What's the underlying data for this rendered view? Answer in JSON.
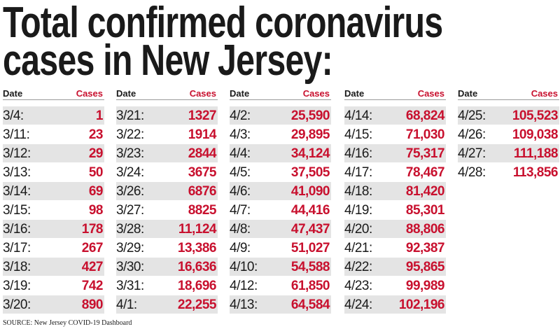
{
  "header": {
    "title_lines": [
      "Total confirmed coronavirus",
      "cases in New Jersey:"
    ]
  },
  "columns": [
    {
      "date_header": "Date",
      "cases_header": "Cases",
      "rows": [
        [
          "3/4:",
          "1"
        ],
        [
          "3/11:",
          "23"
        ],
        [
          "3/12:",
          "29"
        ],
        [
          "3/13:",
          "50"
        ],
        [
          "3/14:",
          "69"
        ],
        [
          "3/15:",
          "98"
        ],
        [
          "3/16:",
          "178"
        ],
        [
          "3/17:",
          "267"
        ],
        [
          "3/18:",
          "427"
        ],
        [
          "3/19:",
          "742"
        ],
        [
          "3/20:",
          "890"
        ]
      ]
    },
    {
      "date_header": "Date",
      "cases_header": "Cases",
      "rows": [
        [
          "3/21:",
          "1327"
        ],
        [
          "3/22:",
          "1914"
        ],
        [
          "3/23:",
          "2844"
        ],
        [
          "3/24:",
          "3675"
        ],
        [
          "3/26:",
          "6876"
        ],
        [
          "3/27:",
          "8825"
        ],
        [
          "3/28:",
          "11,124"
        ],
        [
          "3/29:",
          "13,386"
        ],
        [
          "3/30:",
          "16,636"
        ],
        [
          "3/31:",
          "18,696"
        ],
        [
          "4/1:",
          "22,255"
        ]
      ]
    },
    {
      "date_header": "Date",
      "cases_header": "Cases",
      "rows": [
        [
          "4/2:",
          "25,590"
        ],
        [
          "4/3:",
          "29,895"
        ],
        [
          "4/4:",
          "34,124"
        ],
        [
          "4/5:",
          "37,505"
        ],
        [
          "4/6:",
          "41,090"
        ],
        [
          "4/7:",
          "44,416"
        ],
        [
          "4/8:",
          "47,437"
        ],
        [
          "4/9:",
          "51,027"
        ],
        [
          "4/10:",
          "54,588"
        ],
        [
          "4/12:",
          "61,850"
        ],
        [
          "4/13:",
          "64,584"
        ]
      ]
    },
    {
      "date_header": "Date",
      "cases_header": "Cases",
      "rows": [
        [
          "4/14:",
          "68,824"
        ],
        [
          "4/15:",
          "71,030"
        ],
        [
          "4/16:",
          "75,317"
        ],
        [
          "4/17:",
          "78,467"
        ],
        [
          "4/18:",
          "81,420"
        ],
        [
          "4/19:",
          "85,301"
        ],
        [
          "4/20:",
          "88,806"
        ],
        [
          "4/21:",
          "92,387"
        ],
        [
          "4/22:",
          "95,865"
        ],
        [
          "4/23:",
          "99,989"
        ],
        [
          "4/24:",
          "102,196"
        ]
      ]
    },
    {
      "date_header": "Date",
      "cases_header": "Cases",
      "rows": [
        [
          "4/25:",
          "105,523"
        ],
        [
          "4/26:",
          "109,038"
        ],
        [
          "4/27:",
          "111,188"
        ],
        [
          "4/28:",
          "113,856"
        ]
      ]
    }
  ],
  "source": "SOURCE: New Jersey COVID-19 Dashboard"
}
